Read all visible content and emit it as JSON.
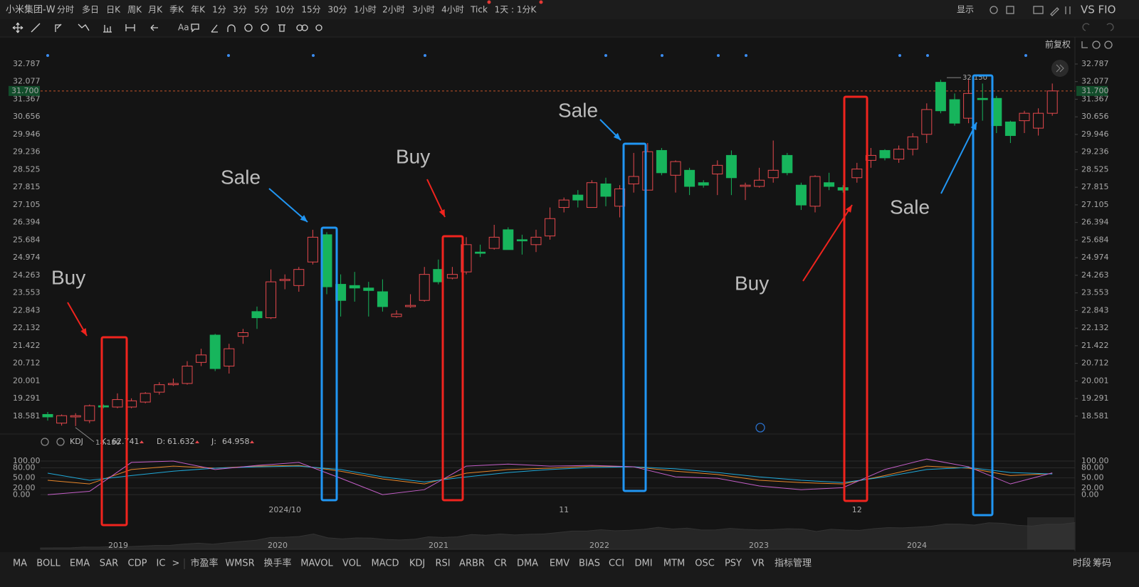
{
  "header": {
    "symbol": "小米集团-W",
    "periods": [
      "分时",
      "多日",
      "日K",
      "周K",
      "月K",
      "季K",
      "年K",
      "1分",
      "3分",
      "5分",
      "10分",
      "15分",
      "30分",
      "1小时",
      "2小时",
      "3小时",
      "4小时",
      "Tick",
      "1天 : 1分K"
    ],
    "active_index": 2,
    "right": [
      "显示",
      "VS FIO"
    ]
  },
  "toolbar": {
    "text_tool": "Aa",
    "adjust": "前复权"
  },
  "chart_data": [
    {
      "type": "candlestick",
      "ylim": [
        17.86,
        33.36
      ],
      "yticks": [
        32.787,
        32.077,
        31.367,
        30.656,
        29.946,
        29.236,
        28.525,
        27.815,
        27.105,
        26.394,
        25.684,
        24.974,
        24.263,
        23.553,
        22.843,
        22.132,
        21.422,
        20.712,
        {
          "value": 20.001,
          "label": "20.001"
        },
        19.291,
        18.581
      ],
      "up_color": "#e5484d",
      "down_color": "#17b55c",
      "open": [
        18.65,
        18.3,
        18.55,
        18.4,
        19.0,
        18.95,
        18.95,
        19.15,
        19.55,
        19.85,
        19.9,
        20.75,
        21.85,
        20.6,
        21.8,
        22.8,
        22.55,
        24.05,
        23.85,
        24.8,
        25.9,
        23.9,
        23.85,
        23.75,
        23.6,
        22.6,
        23.0,
        23.25,
        24.5,
        24.15,
        24.4,
        25.2,
        25.35,
        26.1,
        25.7,
        25.5,
        25.85,
        27.0,
        27.5,
        27.0,
        27.95,
        27.05,
        27.95,
        27.7,
        29.3,
        28.3,
        28.5,
        28.0,
        28.35,
        29.1,
        27.85,
        27.85,
        28.2,
        29.1,
        27.9,
        27.05,
        28.0,
        27.8,
        28.2,
        28.9,
        29.3,
        28.95,
        29.35,
        29.95,
        32.05,
        31.35,
        30.6,
        31.4,
        31.4,
        30.45,
        30.5,
        30.2,
        30.8
      ],
      "high": [
        18.75,
        18.65,
        18.7,
        19.05,
        19.05,
        19.5,
        19.3,
        19.55,
        19.95,
        20.1,
        20.8,
        21.3,
        21.9,
        21.5,
        22.1,
        23.0,
        24.5,
        24.3,
        24.6,
        26.1,
        26.0,
        24.3,
        24.4,
        24.0,
        24.1,
        22.85,
        23.5,
        24.6,
        24.9,
        24.6,
        25.8,
        25.5,
        26.3,
        26.2,
        25.9,
        26.1,
        27.0,
        27.4,
        27.7,
        28.1,
        28.2,
        27.9,
        29.2,
        29.6,
        29.4,
        28.9,
        28.6,
        28.1,
        28.9,
        29.3,
        28.0,
        28.6,
        29.7,
        29.2,
        28.0,
        28.3,
        28.4,
        27.9,
        28.8,
        29.4,
        29.35,
        29.5,
        30.0,
        31.2,
        32.15,
        31.6,
        32.15,
        32.0,
        31.5,
        30.5,
        30.9,
        31.0,
        32.0
      ],
      "low": [
        18.4,
        18.2,
        18.18,
        18.3,
        18.9,
        18.9,
        18.9,
        19.1,
        19.45,
        19.8,
        19.85,
        20.6,
        20.4,
        20.3,
        21.5,
        22.1,
        22.5,
        23.7,
        23.6,
        24.7,
        23.5,
        22.6,
        23.2,
        22.6,
        22.8,
        22.55,
        22.95,
        23.2,
        23.9,
        24.1,
        24.3,
        25.0,
        25.3,
        25.3,
        25.1,
        25.2,
        25.7,
        26.8,
        27.0,
        27.0,
        27.05,
        26.6,
        27.6,
        27.7,
        28.3,
        27.6,
        27.5,
        27.8,
        27.5,
        27.5,
        27.3,
        27.8,
        28.0,
        28.3,
        26.9,
        26.8,
        27.7,
        27.6,
        28.0,
        28.6,
        28.9,
        28.8,
        29.1,
        29.6,
        30.8,
        30.3,
        30.4,
        30.5,
        30.0,
        29.6,
        30.0,
        29.9,
        30.7
      ],
      "close": [
        18.55,
        18.6,
        18.6,
        19.0,
        18.95,
        19.25,
        19.2,
        19.5,
        19.85,
        19.9,
        20.6,
        21.05,
        20.5,
        21.3,
        21.95,
        22.55,
        24.0,
        24.1,
        24.5,
        25.8,
        23.8,
        23.25,
        23.75,
        23.65,
        23.0,
        22.7,
        23.05,
        24.3,
        24.0,
        24.3,
        25.5,
        25.15,
        25.8,
        25.3,
        25.65,
        25.8,
        26.55,
        27.3,
        27.3,
        28.0,
        27.45,
        27.75,
        28.25,
        29.25,
        28.4,
        28.85,
        27.85,
        27.9,
        28.7,
        28.2,
        27.9,
        28.1,
        28.5,
        28.4,
        27.1,
        28.25,
        27.85,
        27.7,
        28.55,
        29.1,
        29.0,
        29.35,
        29.85,
        30.95,
        30.9,
        30.4,
        31.6,
        31.35,
        30.3,
        29.9,
        30.8,
        30.8,
        31.7
      ],
      "last_price": {
        "value": 31.7,
        "label": "31.700"
      },
      "high_label": {
        "value": 32.15,
        "label": "32.150"
      },
      "low_label": {
        "value": 18.18,
        "label": "18.180"
      },
      "annotations": [
        {
          "text": "Buy",
          "color": "#f0241e"
        },
        {
          "text": "Sale",
          "color": "#2196f3"
        },
        {
          "text": "Buy",
          "color": "#f0241e"
        },
        {
          "text": "Sale",
          "color": "#2196f3"
        },
        {
          "text": "Buy",
          "color": "#f0241e"
        },
        {
          "text": "Sale",
          "color": "#2196f3"
        }
      ]
    },
    {
      "type": "line",
      "title": "KDJ",
      "x": [
        0,
        3,
        6,
        9,
        12,
        15,
        18,
        21,
        24,
        27,
        30,
        33,
        36,
        39,
        42,
        45,
        48,
        51,
        54,
        57,
        60,
        63,
        66,
        69,
        72
      ],
      "ylim": [
        -10,
        117
      ],
      "yticks": [
        {
          "value": 100,
          "label": "100.00"
        },
        {
          "value": 80,
          "label": "80.00"
        },
        {
          "value": 50,
          "label": "50.00"
        },
        {
          "value": 20,
          "label": "20.00"
        },
        {
          "value": 0,
          "label": "0.00"
        }
      ],
      "xticks": [
        {
          "value": 17,
          "label": "2024/10"
        },
        {
          "value": 37,
          "label": "11"
        },
        {
          "value": 58,
          "label": "12"
        }
      ],
      "series": [
        {
          "name": "K:",
          "color": "#e8872a",
          "values": [
            43,
            32,
            75,
            85,
            79,
            85,
            87,
            70,
            47,
            32,
            64,
            75,
            79,
            85,
            83,
            70,
            60,
            43,
            36,
            32,
            57,
            85,
            79,
            57,
            62.741
          ]
        },
        {
          "name": "D:",
          "color": "#1fa8d8",
          "values": [
            64,
            43,
            57,
            70,
            79,
            83,
            85,
            75,
            53,
            38,
            53,
            66,
            75,
            81,
            83,
            77,
            66,
            53,
            43,
            36,
            53,
            75,
            81,
            66,
            61.632
          ]
        },
        {
          "name": "J:",
          "color": "#c45fc8",
          "values": [
            0,
            10,
            96,
            100,
            75,
            87,
            96,
            49,
            0,
            15,
            85,
            91,
            85,
            87,
            83,
            53,
            49,
            26,
            15,
            21,
            75,
            106,
            83,
            32,
            64.958
          ]
        }
      ]
    }
  ],
  "navigator": {
    "labels": [
      "2019",
      "2020",
      "2021",
      "2022",
      "2023",
      "2024"
    ]
  },
  "indicator_bar": {
    "items": [
      "MA",
      "BOLL",
      "EMA",
      "SAR",
      "CDP",
      "IC",
      ">",
      "市盈率",
      "WMSR",
      "换手率",
      "MAVOL",
      "VOL",
      "MACD",
      "KDJ",
      "RSI",
      "ARBR",
      "CR",
      "DMA",
      "EMV",
      "BIAS",
      "CCI",
      "DMI",
      "MTM",
      "OSC",
      "PSY",
      "VR"
    ],
    "active_index": 13,
    "manage": "指标管理",
    "right": [
      "时段",
      "筹码"
    ]
  }
}
